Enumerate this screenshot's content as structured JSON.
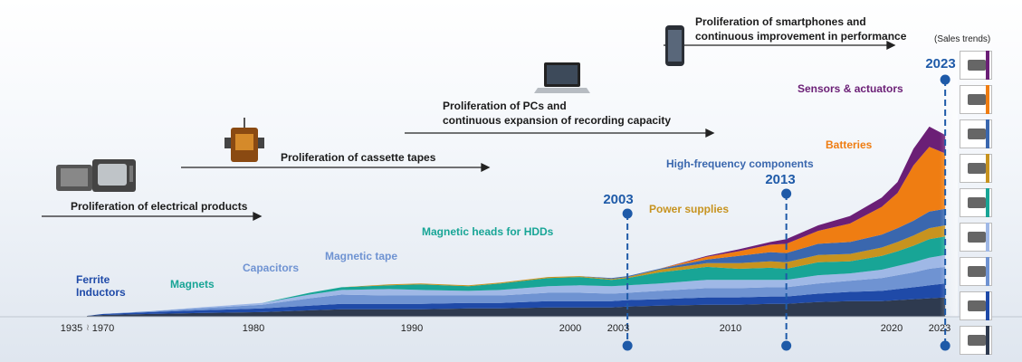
{
  "chart_data": {
    "type": "area",
    "stacked": true,
    "x": [
      "1935",
      "1970",
      "1973",
      "1976",
      "1980",
      "1983",
      "1985",
      "1988",
      "1990",
      "1993",
      "1995",
      "1998",
      "2000",
      "2002",
      "2003",
      "2005",
      "2008",
      "2010",
      "2012",
      "2013",
      "2015",
      "2017",
      "2019",
      "2020",
      "2021",
      "2022",
      "2023"
    ],
    "x_ticks": [
      "1935",
      "1970",
      "1980",
      "1990",
      "2000",
      "2003",
      "2010",
      "2020",
      "2023"
    ],
    "series": [
      {
        "name": "Ferrite Inductors",
        "color": "#2e3a4f",
        "values": [
          1,
          2,
          3,
          4,
          5,
          7,
          8,
          8,
          8,
          9,
          9,
          10,
          10,
          10,
          11,
          12,
          13,
          13,
          14,
          14,
          16,
          17,
          17,
          18,
          19,
          20,
          21
        ]
      },
      {
        "name": "Magnets",
        "color": "#1f4aa8",
        "values": [
          0,
          1,
          2,
          3,
          4,
          5,
          6,
          6,
          6,
          6,
          6,
          7,
          7,
          7,
          7,
          7,
          8,
          8,
          8,
          8,
          9,
          10,
          11,
          12,
          13,
          14,
          15
        ]
      },
      {
        "name": "Capacitors",
        "color": "#6f93d2",
        "values": [
          0,
          0,
          1,
          2,
          4,
          8,
          10,
          9,
          9,
          8,
          8,
          9,
          9,
          8,
          8,
          9,
          10,
          10,
          10,
          10,
          11,
          12,
          14,
          15,
          16,
          18,
          18
        ]
      },
      {
        "name": "Magnetic tape",
        "color": "#9fb8e6",
        "values": [
          0,
          0,
          0,
          1,
          2,
          4,
          5,
          7,
          6,
          5,
          6,
          7,
          8,
          8,
          8,
          8,
          9,
          9,
          8,
          8,
          9,
          8,
          9,
          10,
          11,
          12,
          13
        ]
      },
      {
        "name": "Magnetic heads for HDDs",
        "color": "#18a596",
        "values": [
          0,
          0,
          0,
          0,
          0,
          2,
          3,
          4,
          6,
          5,
          7,
          9,
          9,
          7,
          8,
          12,
          14,
          12,
          13,
          12,
          14,
          13,
          15,
          16,
          18,
          20,
          20
        ]
      },
      {
        "name": "Power supplies",
        "color": "#c7931f",
        "values": [
          0,
          0,
          0,
          0,
          0,
          0,
          0,
          1,
          1,
          1,
          1,
          1,
          1,
          1,
          1,
          3,
          4,
          6,
          7,
          7,
          8,
          8,
          9,
          10,
          11,
          12,
          12
        ]
      },
      {
        "name": "High-frequency components",
        "color": "#3a67ae",
        "values": [
          0,
          0,
          0,
          0,
          0,
          0,
          0,
          0,
          0,
          0,
          0,
          0,
          0,
          1,
          1,
          1,
          4,
          8,
          10,
          10,
          12,
          13,
          14,
          15,
          16,
          18,
          18
        ]
      },
      {
        "name": "Batteries",
        "color": "#ef7d12",
        "values": [
          0,
          0,
          0,
          0,
          0,
          0,
          0,
          0,
          0,
          0,
          0,
          0,
          0,
          0,
          0,
          0,
          3,
          5,
          8,
          10,
          14,
          20,
          30,
          38,
          60,
          70,
          60
        ]
      },
      {
        "name": "Sensors & actuators",
        "color": "#6b1f76",
        "values": [
          0,
          0,
          0,
          0,
          0,
          0,
          0,
          0,
          0,
          0,
          0,
          0,
          0,
          0,
          0,
          0,
          1,
          2,
          3,
          5,
          6,
          8,
          10,
          12,
          18,
          22,
          20
        ]
      }
    ],
    "markers": [
      {
        "year": "2003",
        "label": "2003"
      },
      {
        "year": "2013",
        "label": "2013"
      },
      {
        "year": "2023",
        "label": "2023"
      }
    ]
  },
  "eras": [
    {
      "text": "Proliferation of electrical products"
    },
    {
      "text": "Proliferation of cassette tapes"
    },
    {
      "text": "Proliferation of PCs and\ncontinuous expansion of recording capacity"
    },
    {
      "text": "Proliferation of smartphones and\ncontinuous improvement in performance"
    }
  ],
  "axis_break": "≀",
  "sales_caption": "(Sales trends)",
  "icons": [
    "television-icon",
    "cassette-player-icon",
    "laptop-icon",
    "smartphone-icon"
  ]
}
